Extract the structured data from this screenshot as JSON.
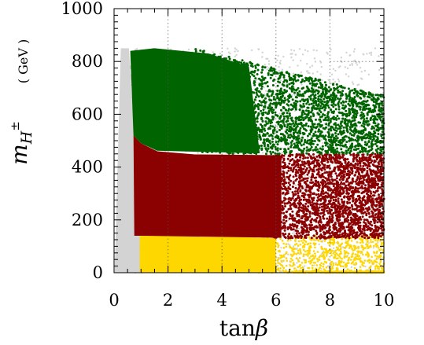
{
  "chart_data": {
    "type": "scatter",
    "xlabel": "tanβ",
    "xlabel_base": "tan",
    "xlabel_symbol": "β",
    "ylabel_symbol": "m",
    "ylabel_subscript": "H",
    "ylabel_superscript": "±",
    "ylabel_unit": "( GeV )",
    "xlim": [
      0,
      10
    ],
    "ylim": [
      0,
      1000
    ],
    "xticks": [
      "0",
      "2",
      "4",
      "6",
      "8",
      "10"
    ],
    "yticks": [
      "0",
      "200",
      "400",
      "600",
      "800",
      "1000"
    ],
    "xtick_values": [
      0,
      2,
      4,
      6,
      8,
      10
    ],
    "ytick_values": [
      0,
      200,
      400,
      600,
      800,
      1000
    ],
    "reference_lines": {
      "vertical_dotted_x": [
        2,
        4,
        6,
        8
      ],
      "horizontal_dotted_y": 800,
      "horizontal_dotted_xrange": [
        8,
        10
      ]
    },
    "series": [
      {
        "color": "#d3d3d3",
        "region": {
          "x_range": [
            0,
            10
          ],
          "y_range": [
            0,
            850
          ],
          "note_x_edge_at_y0": 1.1,
          "note_x_edge_at_y850": 0.5
        }
      },
      {
        "color": "#ffd700",
        "region": {
          "x_range": [
            0.9,
            10
          ],
          "y_range": [
            0,
            150
          ]
        }
      },
      {
        "color": "#8b0000",
        "region": {
          "x_range": [
            0.7,
            10
          ],
          "y_range": [
            130,
            520
          ]
        }
      },
      {
        "color": "#006400",
        "region": {
          "x_range": [
            0.55,
            10
          ],
          "y_range": [
            450,
            850
          ]
        }
      }
    ]
  }
}
